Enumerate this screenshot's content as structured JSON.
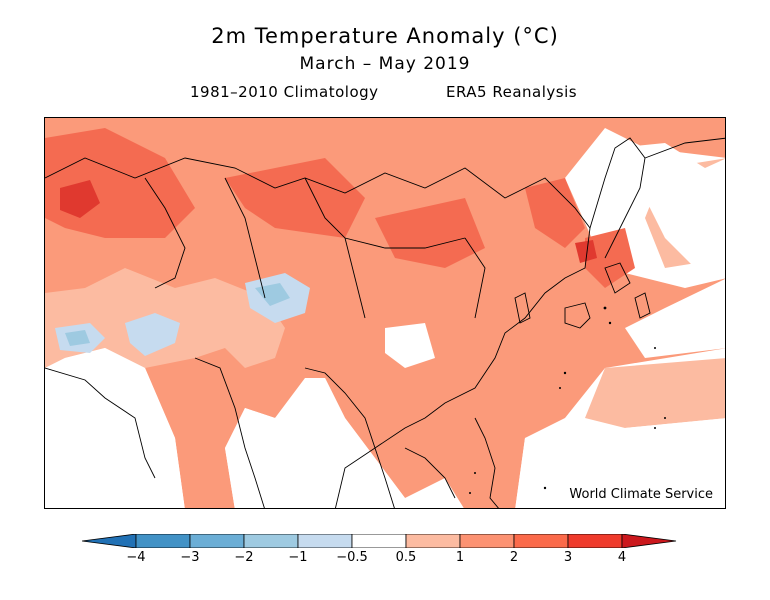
{
  "header": {
    "title": "2m Temperature Anomaly (°C)",
    "period": "March – May 2019",
    "climatology": "1981–2010 Climatology",
    "dataset": "ERA5 Reanalysis"
  },
  "map": {
    "credit": "World Climate Service",
    "anomaly_palette": {
      "0.5-1": "#fcb59a",
      "1-2": "#fb8a6a",
      "2-3": "#f25a45",
      "3-4": "#d92b2b",
      "-1--0.5": "#c6dbef",
      "-2--1": "#9ecae1"
    },
    "coastline_color": "#000000"
  },
  "colorbar": {
    "ticks": [
      "−4",
      "−3",
      "−2",
      "−1",
      "−0.5",
      "0.5",
      "1",
      "2",
      "3",
      "4"
    ],
    "colors": [
      "#2171b5",
      "#4292c6",
      "#6baed6",
      "#9ecae1",
      "#c6dbef",
      "#ffffff",
      "#fcbba1",
      "#fc9272",
      "#fb6a4a",
      "#ef3b2c",
      "#cb181d"
    ],
    "arrow_low_color": "#2171b5",
    "arrow_high_color": "#cb181d"
  }
}
